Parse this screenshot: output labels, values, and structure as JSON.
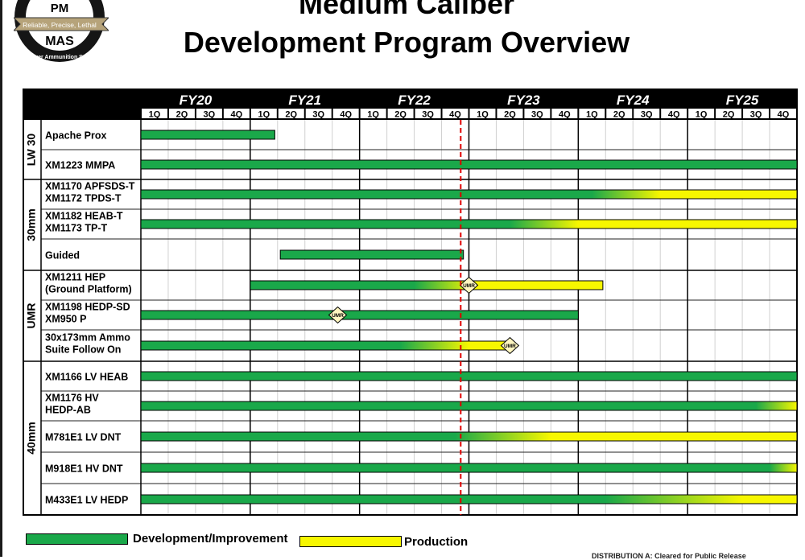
{
  "logo": {
    "top_text": "PM",
    "ribbon_text": "Reliable, Precise, Lethal",
    "center_text": "MAS",
    "ring_text": "Maneuver Ammunition Systems"
  },
  "title": {
    "line1": "Medium Caliber",
    "line2": "Development Program Overview"
  },
  "chart_data": {
    "type": "gantt",
    "fiscal_years": [
      "FY20",
      "FY21",
      "FY22",
      "FY23",
      "FY24",
      "FY25"
    ],
    "quarters": [
      "1Q",
      "2Q",
      "3Q",
      "4Q"
    ],
    "today_marker_quarter": 11.7,
    "groups": [
      {
        "label": "LW 30",
        "rows": [
          0,
          1
        ]
      },
      {
        "label": "30mm",
        "rows": [
          2,
          3,
          4
        ]
      },
      {
        "label": "UMR",
        "rows": [
          5,
          6,
          7
        ]
      },
      {
        "label": "40mm",
        "rows": [
          8,
          9,
          10,
          11,
          12
        ]
      }
    ],
    "rows": [
      {
        "name": "Apache Prox",
        "start": 0,
        "end": 4.9,
        "prod_start": null,
        "fade": 0,
        "milestone": null
      },
      {
        "name": "XM1223 MMPA",
        "start": 0,
        "end": 24,
        "prod_start": null,
        "fade": 0,
        "milestone": null
      },
      {
        "name": "XM1170 APFSDS-T\nXM1172 TPDS-T",
        "start": 0,
        "end": 24,
        "prod_start": 16.5,
        "fade": 2.5,
        "milestone": null
      },
      {
        "name": "XM1182 HEAB-T\nXM1173 TP-T",
        "start": 0,
        "end": 24,
        "prod_start": 13.5,
        "fade": 2.5,
        "milestone": null
      },
      {
        "name": "Guided",
        "start": 5.1,
        "end": 11.8,
        "prod_start": null,
        "fade": 0,
        "milestone": null
      },
      {
        "name": "XM1211 HEP\n(Ground Platform)",
        "start": 4,
        "end": 16.9,
        "prod_start": 10,
        "fade": 2.2,
        "milestone": 12
      },
      {
        "name": "XM1198 HEDP-SD\nXM950 P",
        "start": 0,
        "end": 16,
        "prod_start": null,
        "fade": 0,
        "milestone": 7.2
      },
      {
        "name": "30x173mm Ammo\nSuite Follow On",
        "start": 0,
        "end": 13.5,
        "prod_start": 9.5,
        "fade": 2.5,
        "milestone": 13.5
      },
      {
        "name": "XM1166 LV HEAB",
        "start": 0,
        "end": 24,
        "prod_start": null,
        "fade": 0,
        "milestone": null
      },
      {
        "name": "XM1176 HV\nHEDP-AB",
        "start": 0,
        "end": 24,
        "prod_start": 22.5,
        "fade": 1.5,
        "milestone": null
      },
      {
        "name": "M781E1 LV DNT",
        "start": 0,
        "end": 24,
        "prod_start": 11.5,
        "fade": 3.5,
        "milestone": null
      },
      {
        "name": "M918E1 HV DNT",
        "start": 0,
        "end": 24,
        "prod_start": 23,
        "fade": 1,
        "milestone": null
      },
      {
        "name": "M433E1 LV HEDP",
        "start": 0,
        "end": 24,
        "prod_start": 17,
        "fade": 5,
        "milestone": null
      }
    ],
    "milestone_label": "UMR",
    "legend": [
      "Development/Improvement",
      "Production"
    ],
    "colors": {
      "development": "#1aa84a",
      "production": "#f7f700",
      "header": "#000000",
      "today_line": "#e00000"
    }
  },
  "footer_note": "DISTRIBUTION A: Cleared for Public Release"
}
